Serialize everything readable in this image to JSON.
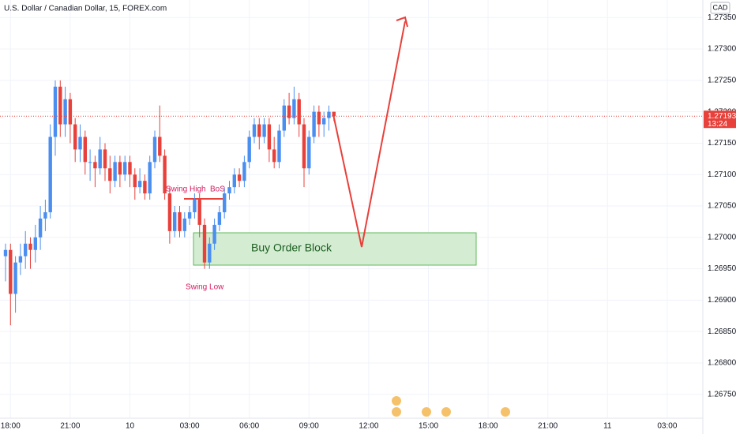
{
  "chart_data": {
    "type": "candlestick",
    "title": "U.S. Dollar / Canadian Dollar, 15, FOREX.com",
    "currency": "CAD",
    "countdown": "13:24",
    "up_color": "#4a8ef0",
    "down_color": "#e8403a",
    "categories": [
      "18:00",
      "21:00",
      "10",
      "03:00",
      "06:00",
      "09:00",
      "12:00",
      "15:00",
      "18:00",
      "21:00",
      "11",
      "03:00"
    ],
    "ylim": [
      1.26712,
      1.27378
    ],
    "yticks": [
      {
        "value": 1.2735,
        "label": "1.27350"
      },
      {
        "value": 1.273,
        "label": "1.27300"
      },
      {
        "value": 1.2725,
        "label": "1.27250"
      },
      {
        "value": 1.272,
        "label": "1.27200"
      },
      {
        "value": 1.2715,
        "label": "1.27150"
      },
      {
        "value": 1.271,
        "label": "1.27100"
      },
      {
        "value": 1.2705,
        "label": "1.27050"
      },
      {
        "value": 1.27,
        "label": "1.27000"
      },
      {
        "value": 1.2695,
        "label": "1.26950"
      },
      {
        "value": 1.269,
        "label": "1.26900"
      },
      {
        "value": 1.2685,
        "label": "1.26850"
      },
      {
        "value": 1.268,
        "label": "1.26800"
      },
      {
        "value": 1.2675,
        "label": "1.26750"
      }
    ],
    "grid": true,
    "candles": [
      [
        1.2697,
        1.2699,
        1.2693,
        1.2698
      ],
      [
        1.2698,
        1.2699,
        1.2686,
        1.2691
      ],
      [
        1.2691,
        1.2697,
        1.2688,
        1.2696
      ],
      [
        1.2696,
        1.2699,
        1.2694,
        1.2697
      ],
      [
        1.2697,
        1.2701,
        1.2695,
        1.2699
      ],
      [
        1.2699,
        1.27,
        1.2695,
        1.2698
      ],
      [
        1.2698,
        1.2702,
        1.2696,
        1.27
      ],
      [
        1.27,
        1.2705,
        1.2698,
        1.2703
      ],
      [
        1.2703,
        1.2706,
        1.2701,
        1.2704
      ],
      [
        1.2704,
        1.2718,
        1.2703,
        1.2716
      ],
      [
        1.2716,
        1.2725,
        1.2713,
        1.2724
      ],
      [
        1.2724,
        1.2725,
        1.2716,
        1.2718
      ],
      [
        1.2718,
        1.2724,
        1.2716,
        1.2722
      ],
      [
        1.2722,
        1.2723,
        1.2715,
        1.2718
      ],
      [
        1.2718,
        1.2719,
        1.2712,
        1.2714
      ],
      [
        1.2714,
        1.2718,
        1.2712,
        1.2716
      ],
      [
        1.2716,
        1.2717,
        1.271,
        1.2712
      ],
      [
        1.2712,
        1.2714,
        1.2709,
        1.2712
      ],
      [
        1.2712,
        1.2713,
        1.2708,
        1.2711
      ],
      [
        1.2711,
        1.2716,
        1.271,
        1.2714
      ],
      [
        1.2714,
        1.2715,
        1.2709,
        1.2711
      ],
      [
        1.2711,
        1.2713,
        1.2707,
        1.2709
      ],
      [
        1.2709,
        1.2713,
        1.2708,
        1.2712
      ],
      [
        1.2712,
        1.2713,
        1.2708,
        1.271
      ],
      [
        1.271,
        1.2713,
        1.2709,
        1.2712
      ],
      [
        1.2712,
        1.2713,
        1.2708,
        1.271
      ],
      [
        1.271,
        1.2711,
        1.2706,
        1.2708
      ],
      [
        1.2708,
        1.2711,
        1.2707,
        1.2709
      ],
      [
        1.2709,
        1.271,
        1.2706,
        1.2707
      ],
      [
        1.2707,
        1.2713,
        1.2706,
        1.2712
      ],
      [
        1.2712,
        1.2717,
        1.2711,
        1.2716
      ],
      [
        1.2716,
        1.2721,
        1.2712,
        1.2713
      ],
      [
        1.2713,
        1.2714,
        1.2706,
        1.2707
      ],
      [
        1.2707,
        1.2708,
        1.2699,
        1.2701
      ],
      [
        1.2701,
        1.2705,
        1.27,
        1.2704
      ],
      [
        1.2704,
        1.2705,
        1.27,
        1.2701
      ],
      [
        1.2701,
        1.2704,
        1.27,
        1.2703
      ],
      [
        1.2703,
        1.2705,
        1.2702,
        1.2704
      ],
      [
        1.2704,
        1.2707,
        1.2703,
        1.2706
      ],
      [
        1.2706,
        1.2707,
        1.27,
        1.2702
      ],
      [
        1.2702,
        1.2703,
        1.2695,
        1.2696
      ],
      [
        1.2696,
        1.27,
        1.2695,
        1.2699
      ],
      [
        1.2699,
        1.2703,
        1.2698,
        1.2702
      ],
      [
        1.2702,
        1.2705,
        1.2701,
        1.2704
      ],
      [
        1.2704,
        1.2708,
        1.2703,
        1.2707
      ],
      [
        1.2707,
        1.2709,
        1.2706,
        1.2708
      ],
      [
        1.2708,
        1.2711,
        1.2707,
        1.271
      ],
      [
        1.271,
        1.2711,
        1.2708,
        1.2709
      ],
      [
        1.2709,
        1.2713,
        1.2708,
        1.2712
      ],
      [
        1.2712,
        1.2717,
        1.2711,
        1.2716
      ],
      [
        1.2716,
        1.2719,
        1.2715,
        1.2718
      ],
      [
        1.2718,
        1.2719,
        1.2714,
        1.2716
      ],
      [
        1.2716,
        1.2719,
        1.2715,
        1.2718
      ],
      [
        1.2718,
        1.2719,
        1.2712,
        1.2714
      ],
      [
        1.2714,
        1.2716,
        1.2711,
        1.2712
      ],
      [
        1.2712,
        1.2718,
        1.2711,
        1.2717
      ],
      [
        1.2717,
        1.2722,
        1.2716,
        1.2721
      ],
      [
        1.2721,
        1.2723,
        1.2718,
        1.2719
      ],
      [
        1.2719,
        1.2724,
        1.2718,
        1.2722
      ],
      [
        1.2722,
        1.2723,
        1.2716,
        1.2718
      ],
      [
        1.2718,
        1.2719,
        1.2708,
        1.2711
      ],
      [
        1.2711,
        1.2717,
        1.271,
        1.2716
      ],
      [
        1.2716,
        1.2721,
        1.2715,
        1.272
      ],
      [
        1.272,
        1.2721,
        1.2716,
        1.2718
      ],
      [
        1.2718,
        1.272,
        1.2716,
        1.2719
      ],
      [
        1.2719,
        1.2721,
        1.2717,
        1.272
      ],
      [
        1.272,
        1.272,
        1.27185,
        1.27193
      ]
    ],
    "annotations": {
      "swing_high": "Swing High",
      "bos": "BoS",
      "swing_low": "Swing Low",
      "order_block": "Buy Order Block"
    }
  }
}
